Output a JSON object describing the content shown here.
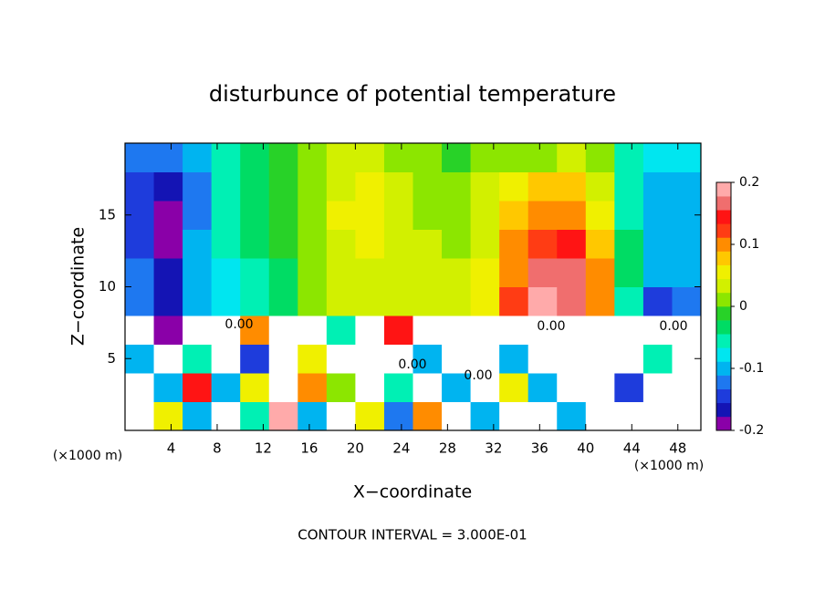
{
  "chart_data": {
    "type": "heatmap",
    "title": "disturbunce of potential temperature",
    "x_label": "X−coordinate",
    "y_label": "Z−coordinate",
    "x_unit": "(×1000 m)",
    "y_unit": "(×1000 m)",
    "footer": "CONTOUR INTERVAL = 3.000E-01",
    "annotations": [
      "0.00",
      "0.00",
      "0.00",
      "0.00",
      "0.00"
    ],
    "xlim": [
      0,
      50
    ],
    "ylim": [
      0,
      20
    ],
    "xticks": [
      4,
      8,
      12,
      16,
      20,
      24,
      28,
      32,
      36,
      40,
      44,
      48
    ],
    "yticks": [
      5,
      10,
      15
    ],
    "clim": [
      -0.2,
      0.2
    ],
    "cticks": [
      -0.2,
      -0.1,
      0,
      0.1,
      0.2
    ],
    "colors": [
      "#8a00a8",
      "#1414b4",
      "#1e3cdc",
      "#1e78f0",
      "#00b4f0",
      "#00e6f0",
      "#00f0b4",
      "#00dc64",
      "#28d228",
      "#8ce600",
      "#d2f000",
      "#f0f000",
      "#ffc800",
      "#ff8c00",
      "#ff3c14",
      "#ff1414",
      "#f06e6e",
      "#ffaaaa"
    ],
    "out_of_range_color": "#ffffff",
    "x": [
      1.25,
      3.75,
      6.25,
      8.75,
      11.25,
      13.75,
      16.25,
      18.75,
      21.25,
      23.75,
      26.25,
      28.75,
      31.25,
      33.75,
      36.25,
      38.75,
      41.25,
      43.75,
      46.25,
      48.75
    ],
    "y": [
      1,
      3,
      5,
      7,
      9,
      11,
      13,
      15,
      17,
      19
    ],
    "z": [
      [
        0.3,
        0.05,
        -0.1,
        0.3,
        -0.05,
        0.2,
        -0.1,
        0.3,
        0.05,
        -0.12,
        0.1,
        0.3,
        -0.1,
        0.3,
        0.3,
        -0.1,
        0.3,
        0.3,
        0.3,
        0.3
      ],
      [
        0.3,
        -0.1,
        0.15,
        -0.1,
        0.05,
        -0.3,
        0.1,
        0.0,
        0.3,
        -0.05,
        0.3,
        -0.1,
        0.3,
        0.05,
        -0.1,
        0.3,
        0.3,
        -0.15,
        0.3,
        0.3
      ],
      [
        -0.1,
        0.3,
        -0.05,
        0.3,
        -0.15,
        0.3,
        0.05,
        0.3,
        -0.3,
        0.3,
        -0.1,
        0.3,
        0.3,
        -0.1,
        0.3,
        0.3,
        0.3,
        0.3,
        -0.05,
        0.3
      ],
      [
        0.3,
        -0.2,
        0.3,
        -0.3,
        0.1,
        0.3,
        0.3,
        -0.05,
        0.3,
        0.15,
        -0.3,
        0.3,
        0.3,
        -0.3,
        0.3,
        0.3,
        0.3,
        0.3,
        -0.3,
        0.3
      ],
      [
        -0.12,
        -0.16,
        -0.09,
        -0.08,
        -0.06,
        -0.03,
        0.02,
        0.04,
        0.04,
        0.04,
        0.04,
        0.03,
        0.05,
        0.12,
        0.18,
        0.17,
        0.09,
        -0.05,
        -0.14,
        -0.12
      ],
      [
        -0.12,
        -0.17,
        -0.1,
        -0.07,
        -0.05,
        -0.03,
        0.02,
        0.04,
        0.04,
        0.04,
        0.03,
        0.03,
        0.05,
        0.1,
        0.16,
        0.17,
        0.1,
        -0.03,
        -0.1,
        -0.11
      ],
      [
        -0.14,
        -0.18,
        -0.1,
        -0.06,
        -0.04,
        -0.02,
        0.02,
        0.04,
        0.05,
        0.04,
        0.03,
        0.02,
        0.04,
        0.09,
        0.13,
        0.15,
        0.08,
        -0.04,
        -0.09,
        -0.1
      ],
      [
        -0.15,
        -0.18,
        -0.12,
        -0.05,
        -0.03,
        -0.005,
        0.02,
        0.05,
        0.05,
        0.04,
        0.02,
        0.02,
        0.04,
        0.07,
        0.1,
        0.11,
        0.05,
        -0.05,
        -0.1,
        -0.1
      ],
      [
        -0.14,
        -0.16,
        -0.12,
        -0.05,
        -0.03,
        -0.01,
        0.02,
        0.04,
        0.05,
        0.04,
        0.02,
        0.01,
        0.03,
        0.05,
        0.07,
        0.08,
        0.03,
        -0.06,
        -0.1,
        -0.09
      ],
      [
        -0.12,
        -0.12,
        -0.09,
        -0.06,
        -0.03,
        -0.01,
        0.02,
        0.03,
        0.03,
        0.02,
        0.01,
        -0.005,
        0.01,
        0.02,
        0.02,
        0.03,
        0.01,
        -0.05,
        -0.08,
        -0.08
      ]
    ]
  }
}
